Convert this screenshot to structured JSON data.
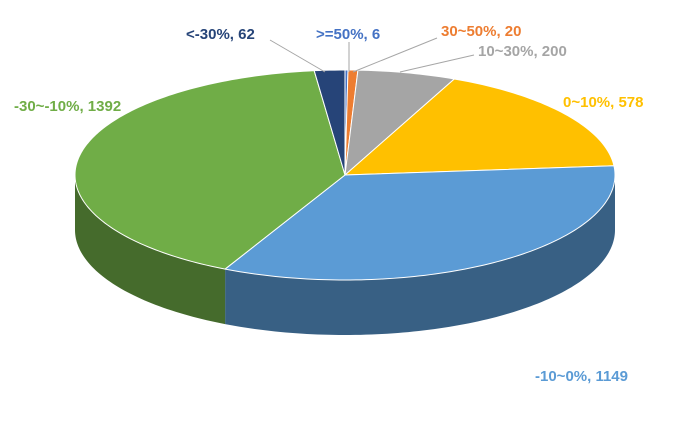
{
  "chart_data": {
    "type": "pie3d",
    "values": [
      6,
      20,
      200,
      578,
      1149,
      1392,
      62
    ],
    "value_labels": [
      ">=50%, 6",
      "30~50%, 20",
      "10~30%, 200",
      "0~10%, 578",
      "-10~0%, 1149",
      "-30~-10%, 1392",
      "<-30%, 62"
    ],
    "colors": [
      "#4472c4",
      "#ed7d31",
      "#a5a5a5",
      "#ffc000",
      "#5b9bd5",
      "#70ad47",
      "#264478"
    ]
  }
}
